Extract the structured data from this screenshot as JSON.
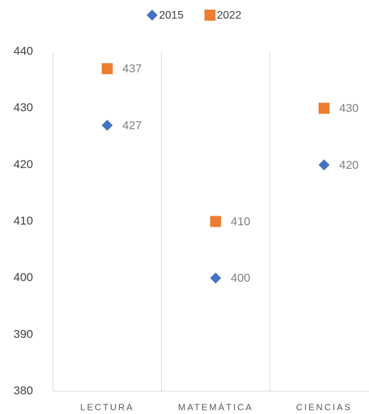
{
  "chart_data": {
    "type": "scatter",
    "categories": [
      "LECTURA",
      "MATEMÁTICA",
      "CIENCIAS"
    ],
    "series": [
      {
        "name": "2015",
        "color": "#4472c4",
        "marker": "diamond",
        "values": [
          427,
          400,
          420
        ]
      },
      {
        "name": "2022",
        "color": "#ed7d31",
        "marker": "square",
        "values": [
          437,
          410,
          430
        ]
      }
    ],
    "ylim": [
      380,
      440
    ],
    "yticks": [
      380,
      390,
      400,
      410,
      420,
      430,
      440
    ],
    "legend": "top"
  }
}
